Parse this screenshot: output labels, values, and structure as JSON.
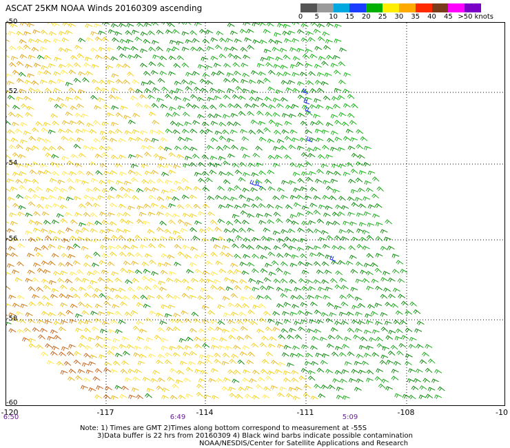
{
  "header": {
    "title": "ASCAT 25KM NOAA Winds 20160309 ascending"
  },
  "legend": {
    "units": ">50 knots",
    "ticks": [
      "0",
      "5",
      "10",
      "15",
      "20",
      "25",
      "30",
      "35",
      "40",
      "45"
    ],
    "colors": [
      "#555555",
      "#9a9a9a",
      "#00a8e0",
      "#1a3cff",
      "#00b000",
      "#ffee00",
      "#ffaa00",
      "#ff2a00",
      "#7a3b1a",
      "#ff00ff",
      "#7a00c8"
    ]
  },
  "map": {
    "lat_labels": [
      "-50",
      "-52",
      "-54",
      "-56",
      "-58",
      "-60"
    ],
    "lon_labels": [
      "-120",
      "-117",
      "-114",
      "-111",
      "-108",
      "-10"
    ],
    "time_labels": [
      "6:50",
      "6:49",
      "5:09"
    ]
  },
  "notes": {
    "line1": "Note: 1) Times are GMT 2)Times along bottom correspond to measurement at -55S",
    "line2": "3)Data buffer is 22 hrs from 20160309 4) Black wind barbs indicate possible contamination",
    "line3": "NOAA/NESDIS/Center for Satellite Applications and Research"
  }
}
